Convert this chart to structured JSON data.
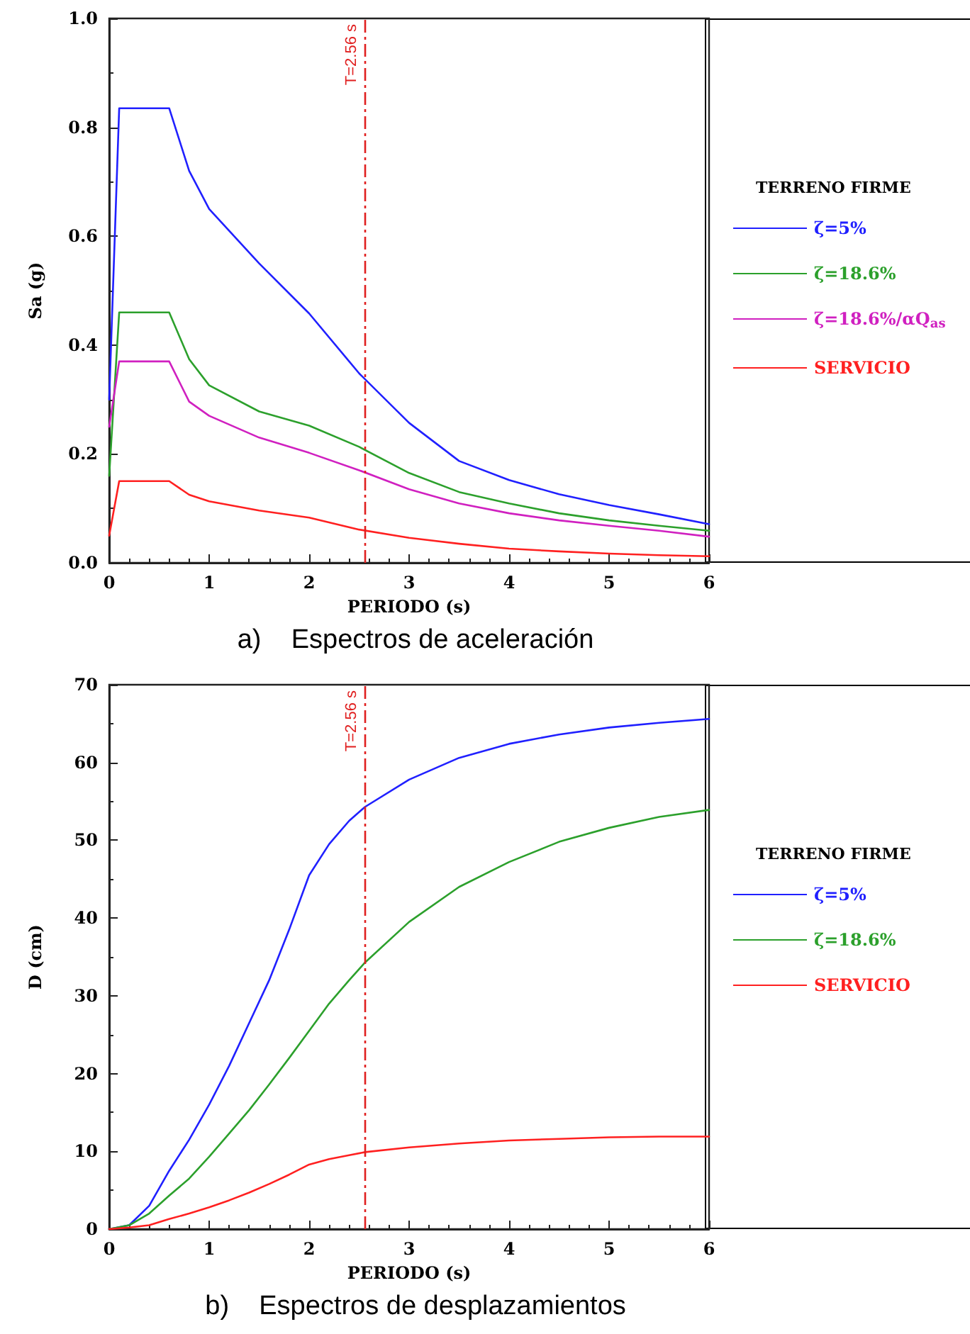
{
  "chart_data": [
    {
      "type": "line",
      "title": "a)    Espectros de aceleración",
      "xlabel": "PERIODO (s)",
      "ylabel": "Sa (g)",
      "legend_title": "TERRENO FIRME",
      "legend": "right",
      "marker": "none",
      "grid": false,
      "xlim": [
        0,
        6
      ],
      "xticks": [
        0,
        1,
        2,
        3,
        4,
        5,
        6
      ],
      "ylim": [
        0,
        1
      ],
      "yticks": [
        {
          "value": 0,
          "label": "0.0"
        },
        {
          "value": 0.2,
          "label": "0.2"
        },
        {
          "value": 0.4,
          "label": "0.4"
        },
        {
          "value": 0.6,
          "label": "0.6"
        },
        {
          "value": 0.8,
          "label": "0.8"
        },
        {
          "value": 1,
          "label": "1.0"
        }
      ],
      "ref_lines": [
        {
          "axis": "x",
          "value": 2.56,
          "label": "T=2.56 s",
          "color": "#e02020",
          "line_style": "dashed"
        }
      ],
      "x": [
        0,
        0.1,
        0.6,
        0.8,
        1,
        1.5,
        2,
        2.5,
        3,
        3.5,
        4,
        4.5,
        5,
        5.5,
        6
      ],
      "series": [
        {
          "name": "ζ=5%",
          "color": "#2020ff",
          "values": [
            0.3,
            0.835,
            0.835,
            0.72,
            0.65,
            0.55,
            0.458,
            0.348,
            0.257,
            0.187,
            0.152,
            0.126,
            0.106,
            0.089,
            0.071
          ]
        },
        {
          "name": "ζ=18.6%",
          "color": "#2ca02c",
          "values": [
            0.16,
            0.46,
            0.46,
            0.374,
            0.326,
            0.278,
            0.252,
            0.213,
            0.165,
            0.13,
            0.109,
            0.091,
            0.078,
            0.068,
            0.059
          ]
        },
        {
          "name": "ζ=18.6%/αQ$_{as}$",
          "color": "#d020c0",
          "values": [
            0.25,
            0.37,
            0.37,
            0.296,
            0.27,
            0.23,
            0.202,
            0.17,
            0.135,
            0.109,
            0.091,
            0.078,
            0.068,
            0.059,
            0.048
          ]
        },
        {
          "name": "SERVICIO",
          "color": "#ff2020",
          "values": [
            0.05,
            0.15,
            0.15,
            0.125,
            0.113,
            0.096,
            0.083,
            0.061,
            0.046,
            0.035,
            0.026,
            0.021,
            0.017,
            0.014,
            0.012
          ]
        }
      ]
    },
    {
      "type": "line",
      "title": "b)    Espectros de desplazamientos",
      "xlabel": "PERIODO (s)",
      "ylabel": "D (cm)",
      "legend_title": "TERRENO FIRME",
      "legend": "right",
      "marker": "none",
      "grid": false,
      "xlim": [
        0,
        6
      ],
      "xticks": [
        0,
        1,
        2,
        3,
        4,
        5,
        6
      ],
      "ylim": [
        0,
        70
      ],
      "yticks": [
        0,
        10,
        20,
        30,
        40,
        50,
        60,
        70
      ],
      "ref_lines": [
        {
          "axis": "x",
          "value": 2.56,
          "label": "T=2.56 s",
          "color": "#e02020",
          "line_style": "dashed"
        }
      ],
      "x": [
        0,
        0.2,
        0.4,
        0.6,
        0.8,
        1,
        1.2,
        1.4,
        1.6,
        1.8,
        2,
        2.2,
        2.4,
        2.56,
        3,
        3.5,
        4,
        4.5,
        5,
        5.5,
        6
      ],
      "series": [
        {
          "name": "ζ=5%",
          "color": "#2020ff",
          "values": [
            0,
            0.5,
            3,
            7.5,
            11.5,
            16,
            21,
            26.5,
            32,
            38.5,
            45.5,
            49.5,
            52.5,
            54.3,
            57.8,
            60.6,
            62.4,
            63.6,
            64.5,
            65.1,
            65.6
          ]
        },
        {
          "name": "ζ=18.6%",
          "color": "#2ca02c",
          "values": [
            0,
            0.5,
            2,
            4.3,
            6.5,
            9.3,
            12.3,
            15.3,
            18.6,
            22,
            25.5,
            29,
            32,
            34.3,
            39.5,
            44,
            47.2,
            49.8,
            51.6,
            53,
            53.9
          ]
        },
        {
          "name": "SERVICIO",
          "color": "#ff2020",
          "values": [
            0,
            0.2,
            0.5,
            1.3,
            2,
            2.8,
            3.7,
            4.7,
            5.8,
            7,
            8.3,
            9,
            9.5,
            9.9,
            10.5,
            11,
            11.4,
            11.6,
            11.8,
            11.9,
            11.9
          ]
        }
      ]
    }
  ]
}
